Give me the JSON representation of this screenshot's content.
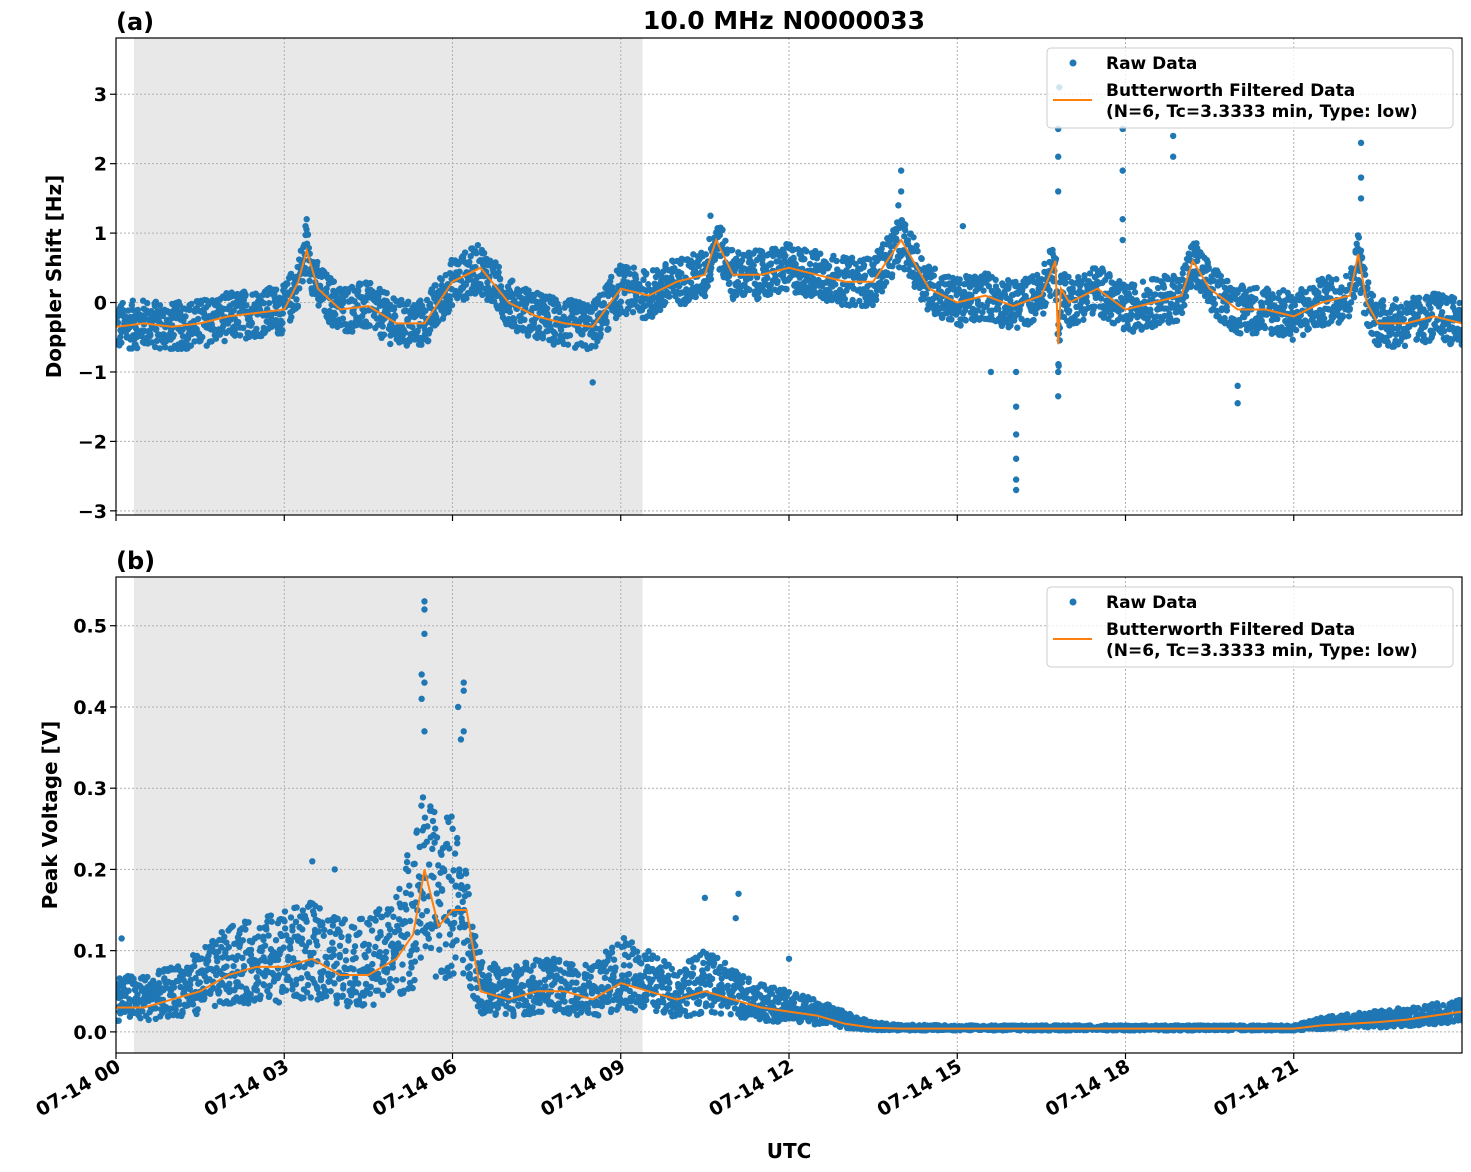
{
  "title": "10.0 MHz N0000033",
  "xlabel": "UTC",
  "x_tick_labels": [
    "07-14 00",
    "07-14 03",
    "07-14 06",
    "07-14 09",
    "07-14 12",
    "07-14 15",
    "07-14 18",
    "07-14 21"
  ],
  "legend": {
    "raw": "Raw Data",
    "filtered_line1": "Butterworth Filtered Data",
    "filtered_line2": "(N=6, Tc=3.3333 min, Type: low)"
  },
  "colors": {
    "raw": "#1f77b4",
    "filtered": "#ff7f0e",
    "shade": "#e8e8e8"
  },
  "chart_data": [
    {
      "type": "scatter",
      "panel_label": "(a)",
      "ylabel": "Doppler Shift [Hz]",
      "xlim_hours": [
        0,
        24
      ],
      "ylim": [
        -3.06,
        3.81
      ],
      "y_ticks": [
        3,
        2,
        1,
        0,
        -1,
        -2,
        -3
      ],
      "y_tick_labels": [
        "3",
        "2",
        "1",
        "0",
        "−1",
        "−2",
        "−3"
      ],
      "shaded_range_hours": [
        0.32,
        9.39
      ],
      "grid": true,
      "legend_placement": "upper-right",
      "filtered": {
        "x": [
          0,
          0.5,
          1,
          1.5,
          2,
          2.5,
          3,
          3.25,
          3.4,
          3.6,
          4,
          4.5,
          5,
          5.5,
          6,
          6.5,
          7,
          7.5,
          8,
          8.5,
          9,
          9.5,
          10,
          10.5,
          10.7,
          11,
          11.5,
          12,
          12.5,
          13,
          13.5,
          14,
          14.5,
          15,
          15.5,
          16,
          16.5,
          16.75,
          16.8,
          16.85,
          17,
          17.5,
          18,
          18.5,
          19,
          19.2,
          19.5,
          20,
          20.5,
          21,
          21.5,
          22,
          22.15,
          22.3,
          22.5,
          23,
          23.5,
          24
        ],
        "y": [
          -0.35,
          -0.3,
          -0.35,
          -0.3,
          -0.2,
          -0.15,
          -0.1,
          0.3,
          0.75,
          0.2,
          -0.1,
          -0.05,
          -0.3,
          -0.3,
          0.3,
          0.5,
          0.0,
          -0.2,
          -0.3,
          -0.35,
          0.2,
          0.1,
          0.3,
          0.4,
          0.9,
          0.4,
          0.4,
          0.5,
          0.4,
          0.3,
          0.3,
          0.9,
          0.2,
          0.0,
          0.1,
          -0.05,
          0.1,
          0.6,
          -0.6,
          0.2,
          0.0,
          0.2,
          -0.1,
          0.0,
          0.1,
          0.6,
          0.2,
          -0.1,
          -0.1,
          -0.2,
          0.0,
          0.1,
          0.7,
          0.0,
          -0.3,
          -0.3,
          -0.2,
          -0.3
        ]
      },
      "raw_halfwidth": 0.35,
      "raw_outliers": [
        [
          3.4,
          1.2
        ],
        [
          3.38,
          1.1
        ],
        [
          8.5,
          -1.15
        ],
        [
          10.6,
          1.25
        ],
        [
          14,
          1.9
        ],
        [
          14,
          1.6
        ],
        [
          13.95,
          1.4
        ],
        [
          15.1,
          1.1
        ],
        [
          15.6,
          -1.0
        ],
        [
          16.05,
          -1.0
        ],
        [
          16.05,
          -1.5
        ],
        [
          16.05,
          -1.9
        ],
        [
          16.05,
          -2.25
        ],
        [
          16.05,
          -2.55
        ],
        [
          16.05,
          -2.7
        ],
        [
          16.8,
          1.6
        ],
        [
          16.8,
          2.1
        ],
        [
          16.8,
          2.5
        ],
        [
          16.82,
          3.1
        ],
        [
          16.8,
          -1.35
        ],
        [
          16.8,
          -1.0
        ],
        [
          17.95,
          2.5
        ],
        [
          17.95,
          1.9
        ],
        [
          17.95,
          1.2
        ],
        [
          17.95,
          0.9
        ],
        [
          18.85,
          2.4
        ],
        [
          18.85,
          2.1
        ],
        [
          20.0,
          -1.45
        ],
        [
          20.0,
          -1.2
        ],
        [
          22.2,
          2.7
        ],
        [
          22.2,
          2.3
        ],
        [
          22.2,
          1.8
        ],
        [
          22.2,
          1.5
        ]
      ]
    },
    {
      "type": "scatter",
      "panel_label": "(b)",
      "ylabel": "Peak Voltage [V]",
      "xlim_hours": [
        0,
        24
      ],
      "ylim": [
        -0.026,
        0.56
      ],
      "y_ticks": [
        0.5,
        0.4,
        0.3,
        0.2,
        0.1,
        0.0
      ],
      "y_tick_labels": [
        "0.5",
        "0.4",
        "0.3",
        "0.2",
        "0.1",
        "0.0"
      ],
      "shaded_range_hours": [
        0.32,
        9.39
      ],
      "grid": true,
      "legend_placement": "upper-right",
      "filtered": {
        "x": [
          0,
          0.5,
          1,
          1.5,
          2,
          2.5,
          3,
          3.5,
          4,
          4.5,
          5,
          5.3,
          5.5,
          5.75,
          6,
          6.25,
          6.5,
          7,
          7.5,
          8,
          8.5,
          9,
          9.5,
          10,
          10.5,
          11,
          11.5,
          12,
          12.5,
          13,
          13.5,
          14,
          15,
          16,
          17,
          18,
          19,
          20,
          21,
          21.5,
          22,
          22.5,
          23,
          23.5,
          24
        ],
        "y": [
          0.03,
          0.03,
          0.04,
          0.05,
          0.07,
          0.08,
          0.08,
          0.09,
          0.07,
          0.07,
          0.09,
          0.12,
          0.2,
          0.13,
          0.15,
          0.15,
          0.05,
          0.04,
          0.05,
          0.05,
          0.04,
          0.06,
          0.05,
          0.04,
          0.05,
          0.04,
          0.03,
          0.025,
          0.02,
          0.01,
          0.005,
          0.004,
          0.004,
          0.004,
          0.004,
          0.004,
          0.004,
          0.004,
          0.004,
          0.008,
          0.01,
          0.012,
          0.015,
          0.02,
          0.025
        ]
      },
      "raw_upper": [
        0.07,
        0.07,
        0.08,
        0.1,
        0.13,
        0.14,
        0.15,
        0.16,
        0.14,
        0.14,
        0.17,
        0.25,
        0.3,
        0.26,
        0.27,
        0.2,
        0.09,
        0.08,
        0.09,
        0.09,
        0.08,
        0.12,
        0.1,
        0.08,
        0.1,
        0.08,
        0.06,
        0.05,
        0.04,
        0.025,
        0.012,
        0.009,
        0.008,
        0.008,
        0.008,
        0.008,
        0.008,
        0.008,
        0.008,
        0.018,
        0.022,
        0.026,
        0.03,
        0.035,
        0.04
      ],
      "raw_outliers": [
        [
          0.1,
          0.115
        ],
        [
          3.5,
          0.21
        ],
        [
          3.9,
          0.2
        ],
        [
          5.5,
          0.53
        ],
        [
          5.5,
          0.52
        ],
        [
          5.5,
          0.49
        ],
        [
          5.45,
          0.44
        ],
        [
          5.5,
          0.43
        ],
        [
          5.45,
          0.41
        ],
        [
          5.5,
          0.37
        ],
        [
          6.2,
          0.43
        ],
        [
          6.2,
          0.42
        ],
        [
          6.1,
          0.4
        ],
        [
          6.2,
          0.37
        ],
        [
          6.15,
          0.36
        ],
        [
          10.5,
          0.165
        ],
        [
          11.1,
          0.17
        ],
        [
          11.05,
          0.14
        ],
        [
          12.0,
          0.09
        ]
      ]
    }
  ]
}
